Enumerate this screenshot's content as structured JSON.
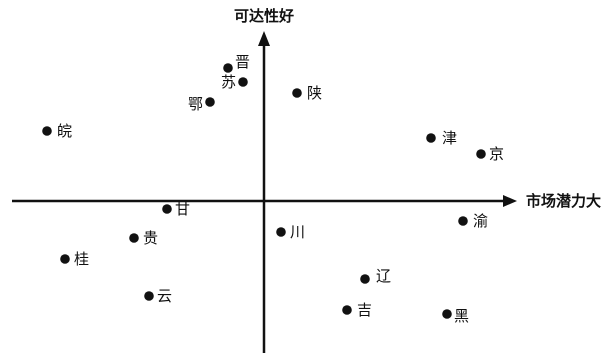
{
  "axes": {
    "x_label": "市场潜力大",
    "y_label": "可达性好"
  },
  "chart_data": {
    "type": "scatter",
    "title": "",
    "xlabel": "市场潜力大",
    "ylabel": "可达性好",
    "points": [
      {
        "label": "晋",
        "x": -0.36,
        "y": 1.33
      },
      {
        "label": "苏",
        "x": -0.21,
        "y": 1.19
      },
      {
        "label": "鄂",
        "x": -0.54,
        "y": 0.99
      },
      {
        "label": "陕",
        "x": 0.33,
        "y": 1.08
      },
      {
        "label": "皖",
        "x": -2.17,
        "y": 0.7
      },
      {
        "label": "津",
        "x": 1.67,
        "y": 0.63
      },
      {
        "label": "京",
        "x": 2.17,
        "y": 0.47
      },
      {
        "label": "甘",
        "x": -0.97,
        "y": -0.08
      },
      {
        "label": "渝",
        "x": 1.99,
        "y": -0.2
      },
      {
        "label": "川",
        "x": 0.17,
        "y": -0.31
      },
      {
        "label": "贵",
        "x": -1.3,
        "y": -0.37
      },
      {
        "label": "桂",
        "x": -1.99,
        "y": -0.58
      },
      {
        "label": "辽",
        "x": 1.01,
        "y": -0.78
      },
      {
        "label": "云",
        "x": -1.15,
        "y": -0.95
      },
      {
        "label": "吉",
        "x": 0.83,
        "y": -1.09
      },
      {
        "label": "黑",
        "x": 1.83,
        "y": -1.13
      }
    ]
  }
}
